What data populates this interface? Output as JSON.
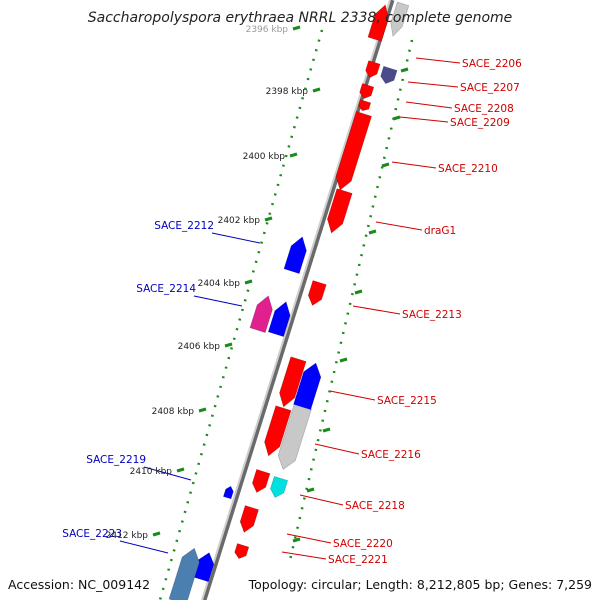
{
  "title": "Saccharopolyspora erythraea NRRL 2338, complete genome",
  "footer": {
    "accession": "Accession: NC_009142",
    "topology": "Topology: circular; Length: 8,212,805 bp; Genes: 7,259"
  },
  "colors": {
    "forward_gene": "#ff0000",
    "reverse_gene": "#0000ff",
    "forward_label": "#d00000",
    "reverse_label": "#0000c0",
    "tick": "#1a8a1a",
    "backbone": "#888888",
    "gray_gene": "#c8c8c8",
    "navy_gene": "#4a4a8c",
    "magenta_gene": "#e0208c",
    "cyan_gene": "#00e0e0",
    "steel_gene": "#4a7fb0"
  },
  "scale_labels": [
    "2396 kbp",
    "2398 kbp",
    "2400 kbp",
    "2402 kbp",
    "2404 kbp",
    "2406 kbp",
    "2408 kbp",
    "2410 kbp",
    "2412 kbp"
  ],
  "forward_gene_labels": [
    "SACE_2206",
    "SACE_2207",
    "SACE_2208",
    "SACE_2209",
    "SACE_2210",
    "draG1",
    "SACE_2213",
    "SACE_2215",
    "SACE_2216",
    "SACE_2218",
    "SACE_2220",
    "SACE_2221"
  ],
  "reverse_gene_labels": [
    "SACE_2212",
    "SACE_2214",
    "SACE_2219",
    "SACE_2223"
  ]
}
